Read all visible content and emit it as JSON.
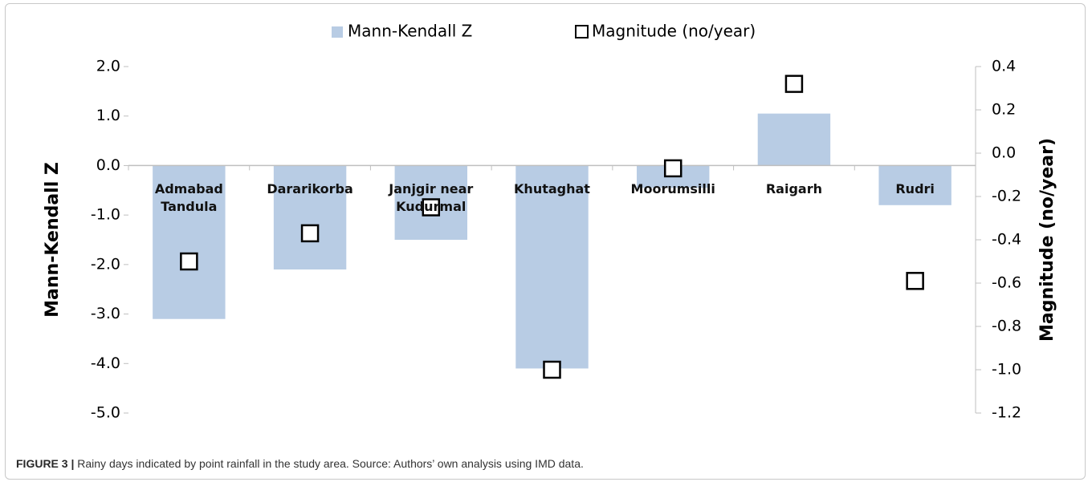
{
  "chart_data": {
    "type": "bar",
    "categories": [
      "Admabad Tandula",
      "Dararikorba",
      "Janjgir near Kudurmal",
      "Khutaghat",
      "Moorumsilli",
      "Raigarh",
      "Rudri"
    ],
    "series": [
      {
        "name": "Mann-Kendall Z",
        "type": "bar",
        "color": "#b8cce4",
        "values": [
          -3.1,
          -2.1,
          -1.5,
          -4.1,
          -0.45,
          1.05,
          -0.8
        ]
      },
      {
        "name": "Magnitude (no/year)",
        "type": "scatter",
        "axis": "y2",
        "color": "#000000",
        "values": [
          -0.5,
          -0.37,
          -0.25,
          -1.0,
          -0.07,
          0.32,
          -0.59
        ]
      }
    ],
    "ylabel": "Mann-Kendall Z",
    "y2label": "Magnitude (no/year)",
    "ylim": [
      -5,
      2
    ],
    "yticks": [
      {
        "value": 2,
        "label": "2.0"
      },
      {
        "value": 1,
        "label": "1.0"
      },
      {
        "value": 0,
        "label": "0.0"
      },
      {
        "value": -1,
        "label": "-1.0"
      },
      {
        "value": -2,
        "label": "-2.0"
      },
      {
        "value": -3,
        "label": "-3.0"
      },
      {
        "value": -4,
        "label": "-4.0"
      },
      {
        "value": -5,
        "label": "-5.0"
      }
    ],
    "y2lim": [
      -1.2,
      0.4
    ],
    "y2ticks": [
      0.4,
      0.2,
      {
        "value": 0,
        "label": "0.0"
      },
      -0.2,
      -0.4,
      -0.6,
      -0.8,
      {
        "value": -1,
        "label": "-1.0"
      },
      -1.2
    ],
    "legend": "top",
    "caption_label": "FIGURE 3 |",
    "caption": "Rainy days indicated by point rainfall in the study area. Source: Authors’ own analysis using IMD data."
  }
}
